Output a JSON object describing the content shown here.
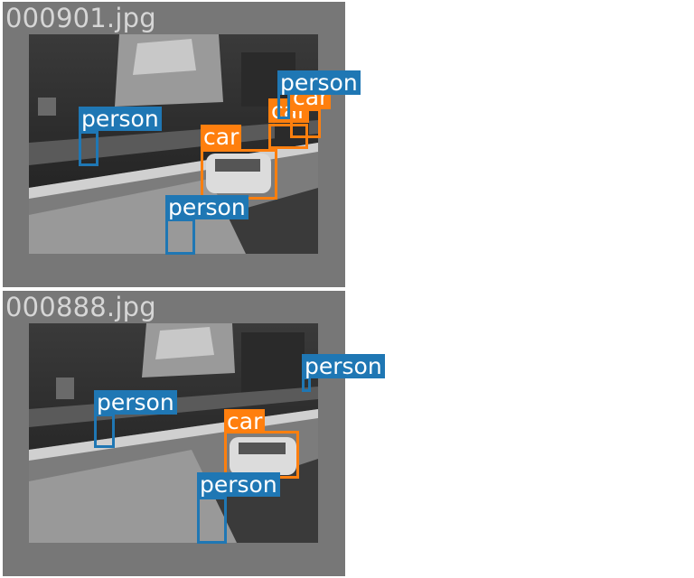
{
  "colors": {
    "person": "#1f77b4",
    "car": "#ff7f0e"
  },
  "panels": [
    {
      "filename": "000901.jpg",
      "detections": [
        {
          "label": "person",
          "cls": "person"
        },
        {
          "label": "car",
          "cls": "car"
        },
        {
          "label": "car",
          "cls": "car"
        },
        {
          "label": "car",
          "cls": "car"
        },
        {
          "label": "person",
          "cls": "person"
        },
        {
          "label": "person",
          "cls": "person"
        }
      ]
    },
    {
      "filename": "000888.jpg",
      "detections": [
        {
          "label": "person",
          "cls": "person"
        },
        {
          "label": "car",
          "cls": "car"
        },
        {
          "label": "person",
          "cls": "person"
        },
        {
          "label": "person",
          "cls": "person"
        }
      ]
    }
  ]
}
